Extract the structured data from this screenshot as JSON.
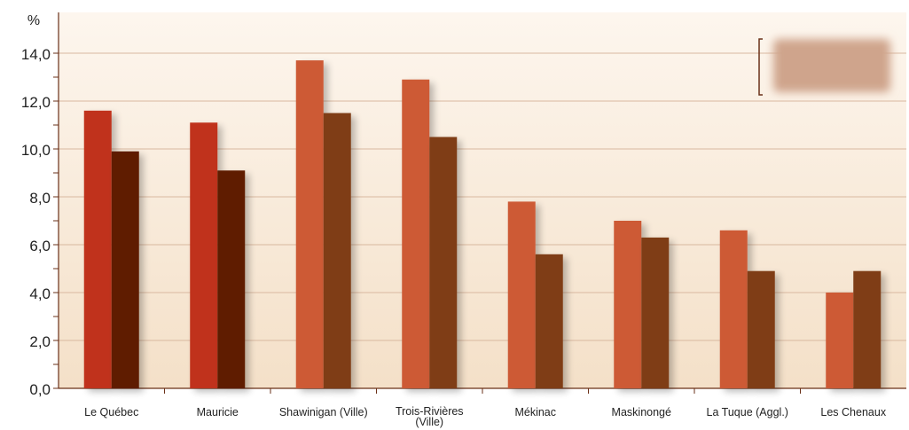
{
  "chart_data": {
    "type": "bar",
    "title": "",
    "xlabel": "",
    "ylabel": "%",
    "ylim": [
      0,
      14
    ],
    "yticks": [
      "0,0",
      "2,0",
      "4,0",
      "6,0",
      "8,0",
      "10,0",
      "12,0",
      "14,0"
    ],
    "grid": true,
    "legend_position": "top-right",
    "categories": [
      "Le Québec",
      "Mauricie",
      "Shawinigan (Ville)",
      "Trois-Rivières (Ville)",
      "Mékinac",
      "Maskinongé",
      "La Tuque (Aggl.)",
      "Les Chenaux"
    ],
    "series": [
      {
        "values": [
          11.6,
          11.1,
          13.7,
          12.9,
          7.8,
          7.0,
          6.6,
          4.0
        ],
        "colors": [
          "#c0301c",
          "#c0301c",
          "#cd5a36",
          "#cd5a36",
          "#cd5a36",
          "#cd5a36",
          "#cd5a36",
          "#cd5a36"
        ]
      },
      {
        "values": [
          9.9,
          9.1,
          11.5,
          10.5,
          5.6,
          6.3,
          4.9,
          4.9
        ],
        "colors": [
          "#5e1f00",
          "#5e1f00",
          "#7f3d19",
          "#7f3d19",
          "#7f3d19",
          "#7f3d19",
          "#7f3d19",
          "#7f3d19"
        ]
      }
    ],
    "colors": {
      "background_top": "#fdf6ee",
      "background_bottom": "#f4e0c8",
      "grid": "#d9b8a0",
      "axis": "#6a3018",
      "text": "#222222",
      "legend_blur": "#cfa48c"
    }
  }
}
